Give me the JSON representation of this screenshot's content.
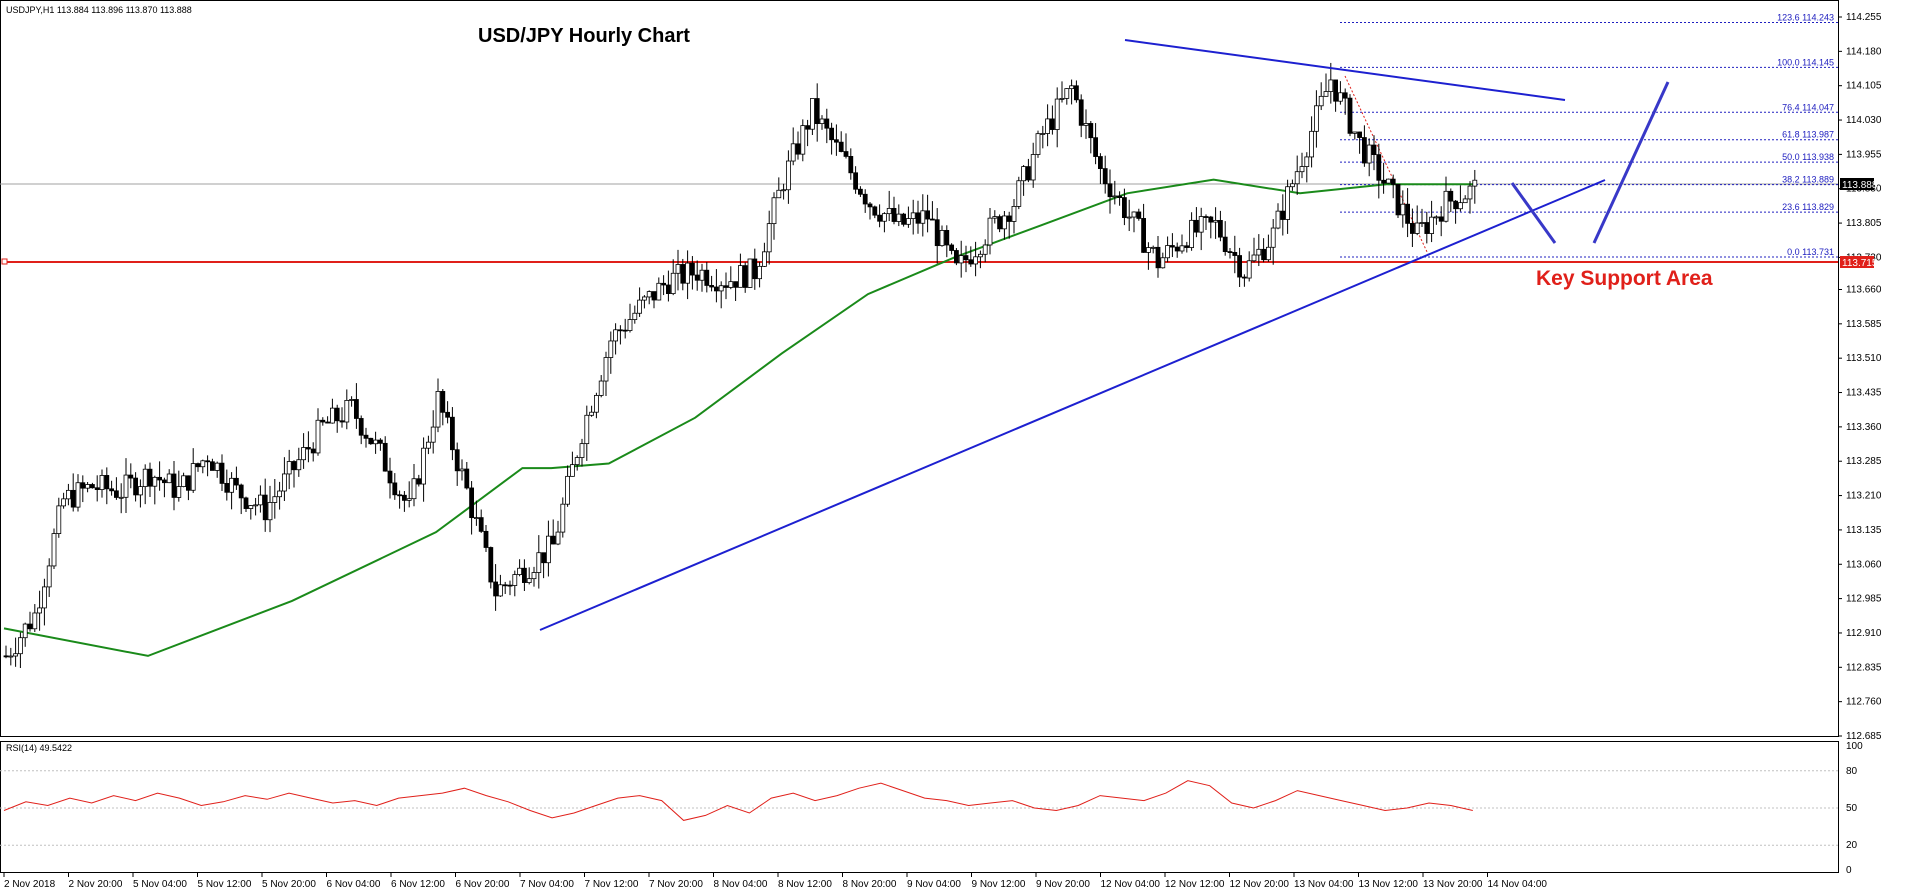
{
  "header": {
    "symbol_info": "USDJPY,H1  113.884 113.896 113.870 113.888"
  },
  "chart_data": {
    "type": "candlestick",
    "title": "USD/JPY Hourly Chart",
    "annotation": "Key Support Area",
    "price_axis": {
      "min": 112.685,
      "max": 114.255,
      "ticks": [
        "114.255",
        "114.180",
        "114.105",
        "114.030",
        "113.955",
        "113.880",
        "113.805",
        "113.730",
        "113.660",
        "113.585",
        "113.510",
        "113.435",
        "113.360",
        "113.285",
        "113.210",
        "113.135",
        "113.060",
        "112.985",
        "112.910",
        "112.835",
        "112.760",
        "112.685"
      ]
    },
    "current_price": "113.888",
    "support_price": "113.715",
    "time_axis": [
      "2 Nov 2018",
      "2 Nov 20:00",
      "5 Nov 04:00",
      "5 Nov 12:00",
      "5 Nov 20:00",
      "6 Nov 04:00",
      "6 Nov 12:00",
      "6 Nov 20:00",
      "7 Nov 04:00",
      "7 Nov 12:00",
      "7 Nov 20:00",
      "8 Nov 04:00",
      "8 Nov 12:00",
      "8 Nov 20:00",
      "9 Nov 04:00",
      "9 Nov 12:00",
      "9 Nov 20:00",
      "12 Nov 04:00",
      "12 Nov 12:00",
      "12 Nov 20:00",
      "13 Nov 04:00",
      "13 Nov 12:00",
      "13 Nov 20:00",
      "14 Nov 04:00"
    ],
    "fibonacci": [
      {
        "label": "123.6 114.243",
        "price": 114.243
      },
      {
        "label": "100.0 114.145",
        "price": 114.145
      },
      {
        "label": "76.4 114.047",
        "price": 114.047
      },
      {
        "label": "61.8 113.987",
        "price": 113.987
      },
      {
        "label": "50.0 113.938",
        "price": 113.938
      },
      {
        "label": "38.2 113.889",
        "price": 113.889
      },
      {
        "label": "23.6 113.829",
        "price": 113.829
      },
      {
        "label": "0.0 113.731",
        "price": 113.731
      }
    ],
    "close_path": [
      [
        0,
        112.86
      ],
      [
        6,
        112.95
      ],
      [
        12,
        113.2
      ],
      [
        18,
        113.23
      ],
      [
        24,
        113.22
      ],
      [
        30,
        113.26
      ],
      [
        36,
        113.22
      ],
      [
        42,
        113.3
      ],
      [
        48,
        113.22
      ],
      [
        54,
        113.18
      ],
      [
        60,
        113.27
      ],
      [
        66,
        113.36
      ],
      [
        72,
        113.4
      ],
      [
        78,
        113.3
      ],
      [
        84,
        113.18
      ],
      [
        90,
        113.42
      ],
      [
        96,
        113.22
      ],
      [
        102,
        113.0
      ],
      [
        108,
        113.05
      ],
      [
        114,
        113.1
      ],
      [
        120,
        113.35
      ],
      [
        126,
        113.55
      ],
      [
        132,
        113.62
      ],
      [
        138,
        113.68
      ],
      [
        144,
        113.7
      ],
      [
        150,
        113.68
      ],
      [
        156,
        113.7
      ],
      [
        162,
        113.9
      ],
      [
        168,
        114.05
      ],
      [
        174,
        113.95
      ],
      [
        180,
        113.85
      ],
      [
        186,
        113.8
      ],
      [
        192,
        113.82
      ],
      [
        198,
        113.7
      ],
      [
        204,
        113.78
      ],
      [
        210,
        113.85
      ],
      [
        216,
        114.0
      ],
      [
        222,
        114.1
      ],
      [
        228,
        113.92
      ],
      [
        234,
        113.82
      ],
      [
        240,
        113.72
      ],
      [
        246,
        113.78
      ],
      [
        252,
        113.8
      ],
      [
        258,
        113.7
      ],
      [
        264,
        113.78
      ],
      [
        270,
        113.95
      ],
      [
        276,
        114.12
      ],
      [
        282,
        113.98
      ],
      [
        288,
        113.88
      ],
      [
        294,
        113.78
      ],
      [
        300,
        113.85
      ],
      [
        306,
        113.88
      ]
    ],
    "ma_path": [
      [
        0,
        112.92
      ],
      [
        30,
        112.86
      ],
      [
        60,
        112.98
      ],
      [
        90,
        113.13
      ],
      [
        108,
        113.27
      ],
      [
        114,
        113.27
      ],
      [
        126,
        113.28
      ],
      [
        144,
        113.38
      ],
      [
        162,
        113.52
      ],
      [
        180,
        113.65
      ],
      [
        198,
        113.73
      ],
      [
        216,
        113.8
      ],
      [
        234,
        113.87
      ],
      [
        252,
        113.9
      ],
      [
        270,
        113.87
      ],
      [
        288,
        113.89
      ],
      [
        306,
        113.89
      ]
    ],
    "indicator": {
      "name": "RSI(14) 49.5422",
      "axis": [
        "100",
        "80",
        "50",
        "20",
        "0"
      ],
      "levels": [
        80,
        50,
        20
      ],
      "values": [
        48,
        55,
        52,
        58,
        54,
        60,
        56,
        62,
        58,
        52,
        55,
        60,
        57,
        62,
        58,
        54,
        56,
        52,
        58,
        60,
        62,
        66,
        60,
        55,
        48,
        42,
        46,
        52,
        58,
        60,
        56,
        40,
        44,
        52,
        46,
        58,
        62,
        56,
        60,
        66,
        70,
        64,
        58,
        56,
        52,
        54,
        56,
        50,
        48,
        52,
        60,
        58,
        56,
        62,
        72,
        68,
        54,
        50,
        56,
        64,
        60,
        56,
        52,
        48,
        50,
        54,
        52,
        48
      ]
    }
  }
}
